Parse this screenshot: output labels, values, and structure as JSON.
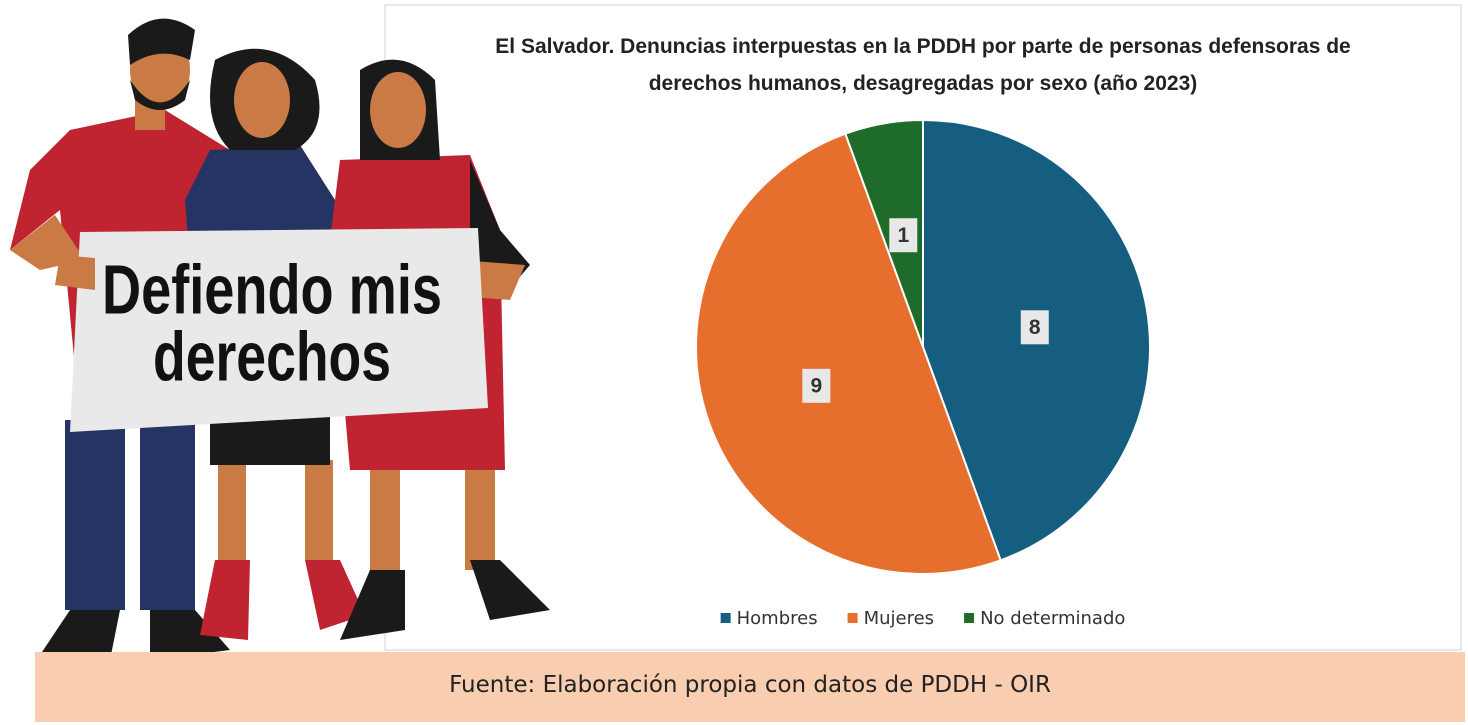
{
  "chart_data": {
    "type": "pie",
    "title": "El Salvador. Denuncias interpuestas en la PDDH por parte de personas defensoras de derechos humanos, desagregadas por sexo (año 2023)",
    "categories": [
      "Hombres",
      "Mujeres",
      "No determinado"
    ],
    "values": [
      8,
      9,
      1
    ],
    "colors": [
      "#165e80",
      "#e76f2e",
      "#1e6b2a"
    ],
    "legend": "bottom"
  },
  "illustration": {
    "sign": [
      "Defiendo mis",
      "derechos"
    ]
  },
  "source": "Fuente: Elaboración propia con datos de PDDH - OIR"
}
